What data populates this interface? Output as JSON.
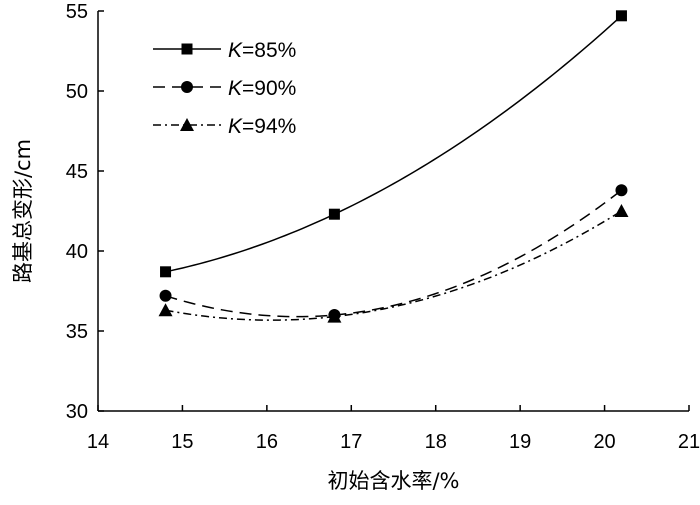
{
  "chart_data": {
    "type": "line",
    "xlabel": "初始含水率/%",
    "ylabel": "路基总变形/cm",
    "xlim": [
      14,
      21
    ],
    "ylim": [
      30,
      55
    ],
    "xticks": [
      14,
      15,
      16,
      17,
      18,
      19,
      20,
      21
    ],
    "yticks": [
      30,
      35,
      40,
      45,
      50,
      55
    ],
    "grid": false,
    "legend_position": "top-left",
    "x": [
      14.8,
      16.8,
      20.2
    ],
    "series": [
      {
        "name_prefix": "K",
        "name_suffix": "=85%",
        "marker": "square",
        "line_style": "solid",
        "color": "#000000",
        "values": [
          38.7,
          42.3,
          54.7
        ]
      },
      {
        "name_prefix": "K",
        "name_suffix": "=90%",
        "marker": "circle",
        "line_style": "dashed",
        "color": "#000000",
        "values": [
          37.2,
          36.0,
          43.8
        ]
      },
      {
        "name_prefix": "K",
        "name_suffix": "=94%",
        "marker": "triangle",
        "line_style": "dash-dot",
        "color": "#000000",
        "values": [
          36.3,
          35.9,
          42.5
        ]
      }
    ]
  }
}
